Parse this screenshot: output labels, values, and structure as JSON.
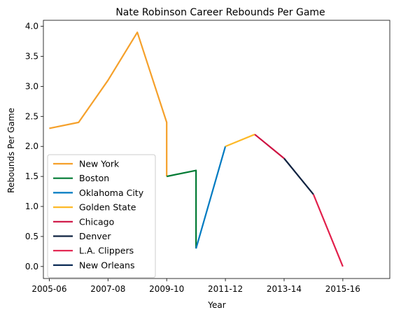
{
  "chart_data": {
    "type": "line",
    "title": "Nate Robinson Career Rebounds Per Game",
    "xlabel": "Year",
    "ylabel": "Rebounds Per Game",
    "x_ticks": [
      "2005-06",
      "2007-08",
      "2009-10",
      "2011-12",
      "2013-14",
      "2015-16"
    ],
    "y_ticks": [
      "0.0",
      "0.5",
      "1.0",
      "1.5",
      "2.0",
      "2.5",
      "3.0",
      "3.5",
      "4.0"
    ],
    "xlim": [
      2004.8,
      2016.6
    ],
    "ylim": [
      -0.2,
      4.1
    ],
    "grid": false,
    "legend_position": "lower-left",
    "series": [
      {
        "name": "New York",
        "color": "#F5A02A",
        "points": [
          [
            2005,
            2.3
          ],
          [
            2006,
            2.4
          ],
          [
            2007,
            3.1
          ],
          [
            2008,
            3.9
          ],
          [
            2009,
            2.4
          ],
          [
            2009,
            1.5
          ]
        ]
      },
      {
        "name": "Boston",
        "color": "#007A33",
        "points": [
          [
            2009,
            1.5
          ],
          [
            2010,
            1.6
          ],
          [
            2010,
            0.3
          ]
        ]
      },
      {
        "name": "Oklahoma City",
        "color": "#007AC1",
        "points": [
          [
            2010,
            0.3
          ],
          [
            2011,
            2.0
          ]
        ]
      },
      {
        "name": "Golden State",
        "color": "#FDB927",
        "points": [
          [
            2011,
            2.0
          ],
          [
            2012,
            2.2
          ]
        ]
      },
      {
        "name": "Chicago",
        "color": "#CE1141",
        "points": [
          [
            2012,
            2.2
          ],
          [
            2013,
            1.8
          ]
        ]
      },
      {
        "name": "Denver",
        "color": "#0E2240",
        "points": [
          [
            2013,
            1.8
          ],
          [
            2014,
            1.2
          ]
        ]
      },
      {
        "name": "L.A. Clippers",
        "color": "#E21F4B",
        "points": [
          [
            2014,
            1.2
          ],
          [
            2015,
            0.0
          ]
        ]
      },
      {
        "name": "New Orleans",
        "color": "#0C2C56",
        "points": []
      }
    ]
  }
}
